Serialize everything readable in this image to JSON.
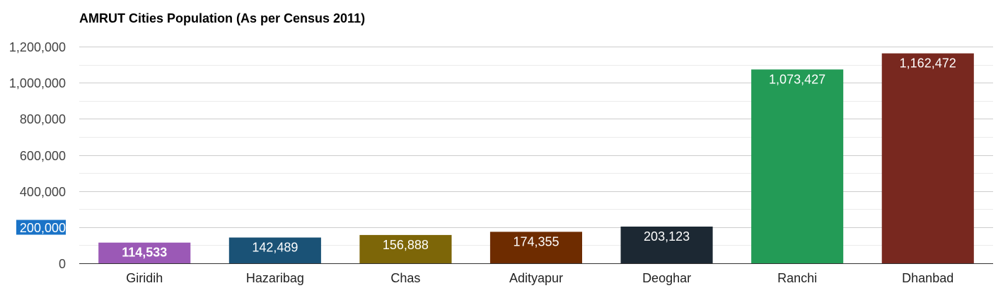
{
  "chart_data": {
    "type": "bar",
    "title": "AMRUT Cities Population (As per Census 2011)",
    "xlabel": "",
    "ylabel": "",
    "ylim": [
      0,
      1200000
    ],
    "yticks": [
      0,
      200000,
      400000,
      600000,
      800000,
      1000000,
      1200000
    ],
    "ytick_labels": [
      "0",
      "200,000",
      "400,000",
      "600,000",
      "800,000",
      "1,000,000",
      "1,200,000"
    ],
    "highlighted_tick": "200,000",
    "grid": true,
    "legend": "none",
    "categories": [
      "Giridih",
      "Hazaribag",
      "Chas",
      "Adityapur",
      "Deoghar",
      "Ranchi",
      "Dhanbad"
    ],
    "values": [
      114533,
      142489,
      156888,
      174355,
      203123,
      1073427,
      1162472
    ],
    "value_labels": [
      "114,533",
      "142,489",
      "156,888",
      "174,355",
      "203,123",
      "1,073,427",
      "1,162,472"
    ],
    "colors": [
      "#9b59b6",
      "#1a5276",
      "#7d6608",
      "#6e2c00",
      "#1c2833",
      "#239b56",
      "#78281f"
    ]
  }
}
